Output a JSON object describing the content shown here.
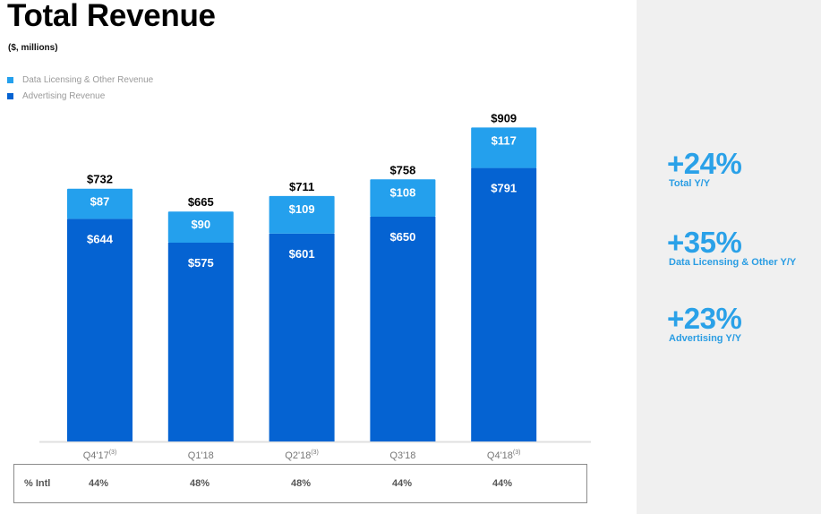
{
  "header": {
    "title": "Total Revenue",
    "subtitle": "($, millions)"
  },
  "legend": [
    {
      "label": "Data Licensing & Other Revenue",
      "color": "#24a0ed"
    },
    {
      "label": "Advertising Revenue",
      "color": "#0563d2"
    }
  ],
  "chart_data": {
    "type": "bar",
    "stacked": true,
    "title": "Total Revenue",
    "subtitle": "($, millions)",
    "categories": [
      "Q4'17",
      "Q1'18",
      "Q2'18",
      "Q3'18",
      "Q4'18"
    ],
    "category_footnotes": [
      "(3)",
      "",
      "(3)",
      "",
      "(3)"
    ],
    "series": [
      {
        "name": "Advertising Revenue",
        "color": "#0563d2",
        "values": [
          644,
          575,
          601,
          650,
          791
        ],
        "labels": [
          "$644",
          "$575",
          "$601",
          "$650",
          "$791"
        ]
      },
      {
        "name": "Data Licensing & Other Revenue",
        "color": "#24a0ed",
        "values": [
          87,
          90,
          109,
          108,
          117
        ],
        "labels": [
          "$87",
          "$90",
          "$109",
          "$108",
          "$117"
        ]
      }
    ],
    "totals": [
      732,
      665,
      711,
      758,
      909
    ],
    "total_labels": [
      "$732",
      "$665",
      "$711",
      "$758",
      "$909"
    ],
    "xlabel": "",
    "ylabel": "",
    "ylim": [
      0,
      909
    ],
    "grid": false,
    "legend_position": "top-left"
  },
  "intl_row": {
    "label": "% Intl",
    "values": [
      "44%",
      "48%",
      "48%",
      "44%",
      "44%"
    ]
  },
  "kpis": [
    {
      "value": "+24%",
      "label": "Total Y/Y"
    },
    {
      "value": "+35%",
      "label": "Data Licensing & Other Y/Y"
    },
    {
      "value": "+23%",
      "label": "Advertising Y/Y"
    }
  ]
}
